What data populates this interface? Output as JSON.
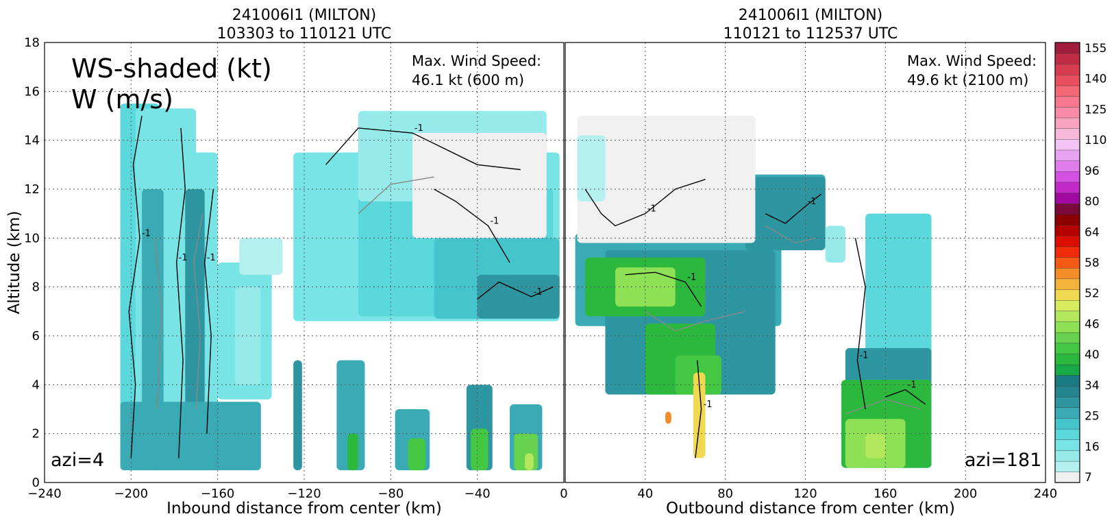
{
  "colors": {
    "cbar": [
      "#f0f0f0",
      "#b4f0f0",
      "#96eaea",
      "#78e4e6",
      "#5ad8dc",
      "#46c4cc",
      "#3aaab4",
      "#2e96a0",
      "#24858e",
      "#1a7a82",
      "#18a848",
      "#2bb83c",
      "#44c844",
      "#66d24e",
      "#8ee055",
      "#b4e85c",
      "#d8ec60",
      "#f0d850",
      "#f4b43c",
      "#f48c28",
      "#f45a16",
      "#f02a0a",
      "#dc0e00",
      "#b40000",
      "#8c0000",
      "#7a0a3c",
      "#a00aa0",
      "#c22ac8",
      "#d450e0",
      "#e07cec",
      "#e8a4f0",
      "#f4c4f4",
      "#f8b8d8",
      "#f8a4c0",
      "#f88ca8",
      "#f87890",
      "#f46878",
      "#e85060",
      "#d83c50",
      "#c02c44",
      "#a01e3c"
    ],
    "contour_black": "#000000",
    "contour_gray": "#888888"
  },
  "colorbar": {
    "ticks": [
      "7",
      "16",
      "25",
      "34",
      "40",
      "46",
      "52",
      "58",
      "64",
      "80",
      "96",
      "110",
      "125",
      "140",
      "155"
    ]
  },
  "chart_data": [
    {
      "type": "heatmap",
      "title_line1": "241006I1 (MILTON)",
      "title_line2": "103303 to 110121 UTC",
      "xlabel": "Inbound distance from center (km)",
      "ylabel": "Altitude (km)",
      "xlim": [
        -240,
        0
      ],
      "ylim": [
        0,
        18
      ],
      "xticks": [
        "−240",
        "−200",
        "−160",
        "−120",
        "−80",
        "−40",
        "0"
      ],
      "yticks": [
        "0",
        "2",
        "4",
        "6",
        "8",
        "10",
        "12",
        "14",
        "16",
        "18"
      ],
      "legend_text_line1": "WS-shaded (kt)",
      "legend_text_line2": "W (m/s)",
      "max_ws_line1": "Max. Wind Speed:",
      "max_ws_line2": "46.1 kt (600 m)",
      "azi_label": "azi=4",
      "contour_label": "-1",
      "max_wind_kt": 46.1,
      "max_wind_alt_m": 600,
      "regions": [
        {
          "x0": -205,
          "x1": -187,
          "y0": 0.5,
          "y1": 15.5,
          "level": 4
        },
        {
          "x0": -198,
          "x1": -170,
          "y0": 0.5,
          "y1": 15.3,
          "level": 3
        },
        {
          "x0": -180,
          "x1": -160,
          "y0": 0.5,
          "y1": 13.5,
          "level": 3
        },
        {
          "x0": -195,
          "x1": -185,
          "y0": 3,
          "y1": 12,
          "level": 6
        },
        {
          "x0": -175,
          "x1": -166,
          "y0": 3,
          "y1": 12,
          "level": 7
        },
        {
          "x0": -205,
          "x1": -140,
          "y0": 0.5,
          "y1": 3.3,
          "level": 6
        },
        {
          "x0": -160,
          "x1": -135,
          "y0": 3.4,
          "y1": 9,
          "level": 3
        },
        {
          "x0": -152,
          "x1": -140,
          "y0": 4,
          "y1": 8,
          "level": 2
        },
        {
          "x0": -125,
          "x1": -121,
          "y0": 0.5,
          "y1": 5,
          "level": 7
        },
        {
          "x0": -105,
          "x1": -92,
          "y0": 0.5,
          "y1": 5,
          "level": 6
        },
        {
          "x0": -100,
          "x1": -95,
          "y0": 0.5,
          "y1": 2,
          "level": 11
        },
        {
          "x0": -78,
          "x1": -62,
          "y0": 0.5,
          "y1": 3,
          "level": 6
        },
        {
          "x0": -72,
          "x1": -64,
          "y0": 0.5,
          "y1": 1.8,
          "level": 12
        },
        {
          "x0": -45,
          "x1": -33,
          "y0": 0.5,
          "y1": 4,
          "level": 7
        },
        {
          "x0": -43,
          "x1": -35,
          "y0": 0.5,
          "y1": 2.2,
          "level": 12
        },
        {
          "x0": -25,
          "x1": -10,
          "y0": 0.5,
          "y1": 3.2,
          "level": 6
        },
        {
          "x0": -23,
          "x1": -12,
          "y0": 0.5,
          "y1": 2,
          "level": 13
        },
        {
          "x0": -18,
          "x1": -14,
          "y0": 0.5,
          "y1": 1.2,
          "level": 15
        },
        {
          "x0": -125,
          "x1": -2,
          "y0": 6.6,
          "y1": 13.5,
          "level": 3
        },
        {
          "x0": -95,
          "x1": -5,
          "y0": 6.8,
          "y1": 12,
          "level": 4
        },
        {
          "x0": -60,
          "x1": -2,
          "y0": 6.7,
          "y1": 10,
          "level": 5
        },
        {
          "x0": -40,
          "x1": -2,
          "y0": 6.7,
          "y1": 8.5,
          "level": 7
        },
        {
          "x0": -95,
          "x1": -8,
          "y0": 11.5,
          "y1": 15.2,
          "level": 2
        },
        {
          "x0": -70,
          "x1": -8,
          "y0": 10,
          "y1": 14.3,
          "level": 0
        },
        {
          "x0": -150,
          "x1": -130,
          "y0": 8.5,
          "y1": 10,
          "level": 1
        }
      ]
    },
    {
      "type": "heatmap",
      "title_line1": "241006I1 (MILTON)",
      "title_line2": "110121 to 112537 UTC",
      "xlabel": "Outbound distance from center (km)",
      "ylabel": "",
      "xlim": [
        0,
        240
      ],
      "ylim": [
        0,
        18
      ],
      "xticks": [
        "0",
        "40",
        "80",
        "120",
        "160",
        "200",
        "240"
      ],
      "yticks": [],
      "max_ws_line1": "Max. Wind Speed:",
      "max_ws_line2": "49.6 kt (2100 m)",
      "azi_label": "azi=181",
      "contour_label": "-1",
      "max_wind_kt": 49.6,
      "max_wind_alt_m": 2100,
      "regions": [
        {
          "x0": 5,
          "x1": 108,
          "y0": 6.4,
          "y1": 10.2,
          "level": 6
        },
        {
          "x0": 20,
          "x1": 105,
          "y0": 3.6,
          "y1": 9.5,
          "level": 7
        },
        {
          "x0": 10,
          "x1": 70,
          "y0": 6.8,
          "y1": 9.2,
          "level": 11
        },
        {
          "x0": 25,
          "x1": 55,
          "y0": 7.2,
          "y1": 8.8,
          "level": 14
        },
        {
          "x0": 40,
          "x1": 75,
          "y0": 3.6,
          "y1": 6.5,
          "level": 11
        },
        {
          "x0": 55,
          "x1": 78,
          "y0": 3.6,
          "y1": 5.2,
          "level": 12
        },
        {
          "x0": 64,
          "x1": 70,
          "y0": 1,
          "y1": 4.5,
          "level": 17
        },
        {
          "x0": 50,
          "x1": 53,
          "y0": 2.4,
          "y1": 2.9,
          "level": 19
        },
        {
          "x0": 20,
          "x1": 130,
          "y0": 9.8,
          "y1": 12.6,
          "level": 6
        },
        {
          "x0": 90,
          "x1": 130,
          "y0": 9.5,
          "y1": 12.5,
          "level": 7
        },
        {
          "x0": 6,
          "x1": 95,
          "y0": 9.8,
          "y1": 15,
          "level": 0
        },
        {
          "x0": 6,
          "x1": 20,
          "y0": 11.5,
          "y1": 14.2,
          "level": 1
        },
        {
          "x0": 130,
          "x1": 140,
          "y0": 9,
          "y1": 10.5,
          "level": 2
        },
        {
          "x0": 150,
          "x1": 183,
          "y0": 0.6,
          "y1": 11,
          "level": 4
        },
        {
          "x0": 140,
          "x1": 183,
          "y0": 0.6,
          "y1": 5.5,
          "level": 7
        },
        {
          "x0": 138,
          "x1": 183,
          "y0": 0.6,
          "y1": 4.2,
          "level": 11
        },
        {
          "x0": 140,
          "x1": 170,
          "y0": 0.6,
          "y1": 2.6,
          "level": 14
        },
        {
          "x0": 150,
          "x1": 160,
          "y0": 1,
          "y1": 2,
          "level": 15
        }
      ]
    }
  ]
}
